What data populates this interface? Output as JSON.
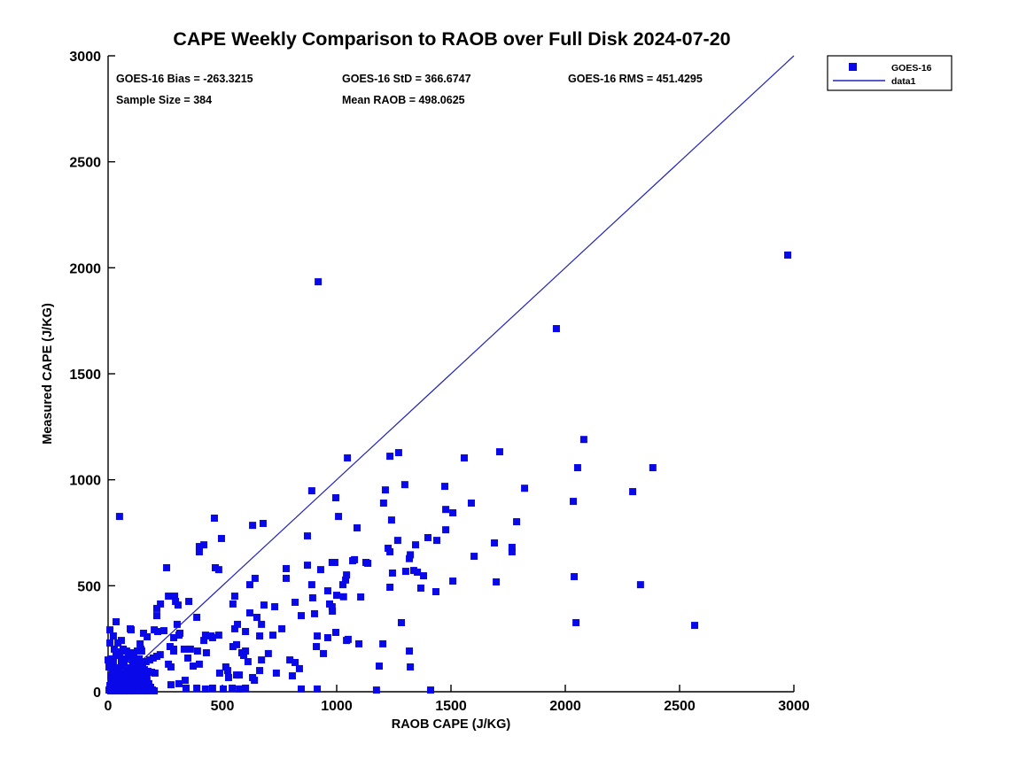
{
  "figure": {
    "stats": {
      "bias": "GOES-16 Bias = -263.3215",
      "std": "GOES-16 StD = 366.6747",
      "rms": "GOES-16 RMS = 451.4295",
      "sample_size": "Sample Size = 384",
      "mean_raob": "Mean RAOB = 498.0625"
    },
    "legend": {
      "entries": [
        {
          "label": "GOES-16",
          "marker": "square"
        },
        {
          "label": "data1",
          "marker": "line"
        }
      ]
    }
  },
  "chart_data": {
    "type": "scatter",
    "title": "CAPE Weekly Comparison to RAOB over Full Disk 2024-07-20",
    "xlabel": "RAOB CAPE (J/KG)",
    "ylabel": "Measured CAPE (J/KG)",
    "xlim": [
      0,
      3000
    ],
    "ylim": [
      0,
      3000
    ],
    "xticks": [
      0,
      500,
      1000,
      1500,
      2000,
      2500,
      3000
    ],
    "yticks": [
      0,
      500,
      1000,
      1500,
      2000,
      2500,
      3000
    ],
    "grid": false,
    "legend_position": "outside-upper-right",
    "marker_color": "#0808E8",
    "line_color": "#2222BB",
    "stats": {
      "bias": -263.3215,
      "std": 366.6747,
      "rms": 451.4295,
      "sample_size": 384,
      "mean_raob": 498.0625
    },
    "series": [
      {
        "name": "GOES-16",
        "type": "scatter",
        "points": [
          [
            2973,
            2060
          ],
          [
            1961,
            1713
          ],
          [
            919,
            1934
          ],
          [
            2081,
            1190
          ],
          [
            2054,
            1057
          ],
          [
            2383,
            1057
          ],
          [
            2295,
            944
          ],
          [
            2035,
            898
          ],
          [
            2039,
            543
          ],
          [
            2329,
            505
          ],
          [
            2047,
            326
          ],
          [
            2566,
            313
          ],
          [
            1047,
            1103
          ],
          [
            1233,
            1111
          ],
          [
            1271,
            1128
          ],
          [
            1558,
            1103
          ],
          [
            1713,
            1132
          ],
          [
            996,
            915
          ],
          [
            1213,
            952
          ],
          [
            1298,
            977
          ],
          [
            1205,
            890
          ],
          [
            1008,
            827
          ],
          [
            1089,
            773
          ],
          [
            1240,
            810
          ],
          [
            1473,
            969
          ],
          [
            1477,
            860
          ],
          [
            1508,
            844
          ],
          [
            1589,
            890
          ],
          [
            1822,
            960
          ],
          [
            1787,
            802
          ],
          [
            1477,
            764
          ],
          [
            1399,
            727
          ],
          [
            1438,
            714
          ],
          [
            1267,
            714
          ],
          [
            1345,
            693
          ],
          [
            1690,
            702
          ],
          [
            1767,
            681
          ],
          [
            1225,
            677
          ],
          [
            1078,
            623
          ],
          [
            1136,
            606
          ],
          [
            980,
            610
          ],
          [
            1233,
            660
          ],
          [
            1322,
            646
          ],
          [
            1318,
            628
          ],
          [
            1244,
            560
          ],
          [
            1302,
            568
          ],
          [
            1337,
            572
          ],
          [
            1353,
            564
          ],
          [
            1380,
            547
          ],
          [
            1043,
            551
          ],
          [
            1027,
            505
          ],
          [
            1233,
            493
          ],
          [
            1368,
            489
          ],
          [
            1434,
            472
          ],
          [
            1508,
            522
          ],
          [
            1601,
            639
          ],
          [
            1698,
            518
          ],
          [
            1767,
            660
          ],
          [
            1000,
            455
          ],
          [
            1030,
            448
          ],
          [
            1105,
            447
          ],
          [
            980,
            401
          ],
          [
            1283,
            326
          ],
          [
            996,
            280
          ],
          [
            1043,
            242
          ],
          [
            1097,
            226
          ],
          [
            1202,
            226
          ],
          [
            1318,
            192
          ],
          [
            1186,
            121
          ],
          [
            1322,
            117
          ],
          [
            1174,
            8
          ],
          [
            1411,
            8
          ],
          [
            779,
            581
          ],
          [
            872,
            597
          ],
          [
            930,
            576
          ],
          [
            992,
            610
          ],
          [
            1070,
            618
          ],
          [
            1128,
            610
          ],
          [
            643,
            535
          ],
          [
            620,
            505
          ],
          [
            779,
            535
          ],
          [
            891,
            505
          ],
          [
            1039,
            527
          ],
          [
            554,
            451
          ],
          [
            546,
            414
          ],
          [
            682,
            409
          ],
          [
            729,
            401
          ],
          [
            818,
            422
          ],
          [
            895,
            443
          ],
          [
            961,
            476
          ],
          [
            969,
            414
          ],
          [
            981,
            380
          ],
          [
            903,
            368
          ],
          [
            845,
            359
          ],
          [
            620,
            372
          ],
          [
            651,
            351
          ],
          [
            671,
            318
          ],
          [
            566,
            318
          ],
          [
            601,
            284
          ],
          [
            554,
            297
          ],
          [
            663,
            263
          ],
          [
            721,
            267
          ],
          [
            760,
            297
          ],
          [
            915,
            263
          ],
          [
            961,
            255
          ],
          [
            1050,
            247
          ],
          [
            911,
            213
          ],
          [
            942,
            180
          ],
          [
            546,
            213
          ],
          [
            585,
            184
          ],
          [
            612,
            142
          ],
          [
            671,
            150
          ],
          [
            701,
            180
          ],
          [
            795,
            150
          ],
          [
            818,
            138
          ],
          [
            837,
            109
          ],
          [
            806,
            75
          ],
          [
            736,
            88
          ],
          [
            663,
            100
          ],
          [
            574,
            79
          ],
          [
            632,
            67
          ],
          [
            527,
            67
          ],
          [
            515,
            117
          ],
          [
            845,
            13
          ],
          [
            915,
            13
          ],
          [
            601,
            17
          ],
          [
            640,
            54
          ],
          [
            50,
            827
          ],
          [
            465,
            819
          ],
          [
            632,
            785
          ],
          [
            678,
            794
          ],
          [
            891,
            948
          ],
          [
            872,
            735
          ],
          [
            496,
            723
          ],
          [
            419,
            693
          ],
          [
            399,
            685
          ],
          [
            399,
            660
          ],
          [
            256,
            585
          ],
          [
            469,
            585
          ],
          [
            484,
            576
          ],
          [
            291,
            451
          ],
          [
            353,
            426
          ],
          [
            306,
            409
          ],
          [
            388,
            351
          ],
          [
            101,
            292
          ],
          [
            202,
            292
          ],
          [
            171,
            259
          ],
          [
            287,
            255
          ],
          [
            314,
            276
          ],
          [
            426,
            267
          ],
          [
            457,
            255
          ],
          [
            140,
            226
          ],
          [
            147,
            192
          ],
          [
            271,
            213
          ],
          [
            287,
            192
          ],
          [
            264,
            451
          ],
          [
            295,
            426
          ],
          [
            229,
            414
          ],
          [
            213,
            393
          ],
          [
            213,
            359
          ],
          [
            97,
            297
          ],
          [
            155,
            276
          ],
          [
            217,
            284
          ],
          [
            244,
            288
          ],
          [
            302,
            318
          ],
          [
            310,
            267
          ],
          [
            419,
            242
          ],
          [
            450,
            263
          ],
          [
            484,
            267
          ],
          [
            562,
            222
          ],
          [
            287,
            201
          ],
          [
            333,
            201
          ],
          [
            360,
            201
          ],
          [
            391,
            192
          ],
          [
            430,
            184
          ],
          [
            349,
            159
          ],
          [
            372,
            121
          ],
          [
            399,
            130
          ],
          [
            275,
            117
          ],
          [
            264,
            130
          ],
          [
            488,
            88
          ],
          [
            523,
            100
          ],
          [
            562,
            79
          ],
          [
            593,
            171
          ],
          [
            601,
            192
          ],
          [
            310,
            38
          ],
          [
            275,
            33
          ],
          [
            341,
            17
          ],
          [
            388,
            17
          ],
          [
            426,
            13
          ],
          [
            457,
            17
          ],
          [
            504,
            13
          ],
          [
            543,
            17
          ],
          [
            574,
            13
          ],
          [
            337,
            54
          ],
          [
            109,
            146
          ],
          [
            70,
            138
          ],
          [
            23,
            146
          ],
          [
            43,
            96
          ],
          [
            35,
            330
          ],
          [
            8,
            292
          ],
          [
            0,
            150
          ],
          [
            50,
            171
          ],
          [
            4,
            8
          ],
          [
            12,
            4
          ],
          [
            20,
            13
          ],
          [
            28,
            4
          ],
          [
            36,
            8
          ],
          [
            45,
            17
          ],
          [
            54,
            4
          ],
          [
            62,
            13
          ],
          [
            70,
            4
          ],
          [
            78,
            21
          ],
          [
            85,
            8
          ],
          [
            93,
            4
          ],
          [
            101,
            17
          ],
          [
            108,
            8
          ],
          [
            116,
            4
          ],
          [
            124,
            13
          ],
          [
            132,
            25
          ],
          [
            140,
            8
          ],
          [
            147,
            4
          ],
          [
            155,
            17
          ],
          [
            163,
            8
          ],
          [
            171,
            4
          ],
          [
            178,
            13
          ],
          [
            186,
            21
          ],
          [
            194,
            8
          ],
          [
            202,
            4
          ],
          [
            8,
            29
          ],
          [
            23,
            33
          ],
          [
            39,
            29
          ],
          [
            54,
            38
          ],
          [
            70,
            33
          ],
          [
            85,
            42
          ],
          [
            100,
            29
          ],
          [
            116,
            38
          ],
          [
            131,
            33
          ],
          [
            147,
            46
          ],
          [
            162,
            29
          ],
          [
            178,
            38
          ],
          [
            16,
            50
          ],
          [
            31,
            54
          ],
          [
            47,
            58
          ],
          [
            62,
            50
          ],
          [
            78,
            63
          ],
          [
            93,
            54
          ],
          [
            108,
            63
          ],
          [
            124,
            54
          ],
          [
            139,
            67
          ],
          [
            155,
            58
          ],
          [
            170,
            63
          ],
          [
            12,
            75
          ],
          [
            27,
            71
          ],
          [
            43,
            79
          ],
          [
            58,
            71
          ],
          [
            74,
            84
          ],
          [
            89,
            75
          ],
          [
            105,
            88
          ],
          [
            120,
            79
          ],
          [
            136,
            71
          ],
          [
            151,
            84
          ],
          [
            19,
            96
          ],
          [
            50,
            100
          ],
          [
            81,
            104
          ],
          [
            112,
            100
          ],
          [
            4,
            117
          ],
          [
            16,
            130
          ],
          [
            31,
            113
          ],
          [
            62,
            121
          ],
          [
            97,
            113
          ],
          [
            128,
            109
          ],
          [
            143,
            100
          ],
          [
            159,
            104
          ],
          [
            174,
            96
          ],
          [
            190,
            92
          ],
          [
            205,
            88
          ],
          [
            58,
            142
          ],
          [
            74,
            155
          ],
          [
            89,
            167
          ],
          [
            105,
            150
          ],
          [
            120,
            142
          ],
          [
            136,
            155
          ],
          [
            151,
            130
          ],
          [
            166,
            142
          ],
          [
            182,
            150
          ],
          [
            197,
            159
          ],
          [
            213,
            167
          ],
          [
            228,
            175
          ],
          [
            35,
            171
          ],
          [
            50,
            188
          ],
          [
            66,
            201
          ],
          [
            81,
            192
          ],
          [
            97,
            184
          ],
          [
            112,
            176
          ],
          [
            128,
            192
          ],
          [
            143,
            201
          ],
          [
            27,
            201
          ],
          [
            43,
            230
          ],
          [
            58,
            242
          ],
          [
            23,
            263
          ],
          [
            8,
            230
          ],
          [
            12,
            155
          ]
        ]
      },
      {
        "name": "data1",
        "type": "line",
        "points": [
          [
            0,
            0
          ],
          [
            3000,
            3000
          ]
        ]
      }
    ]
  }
}
